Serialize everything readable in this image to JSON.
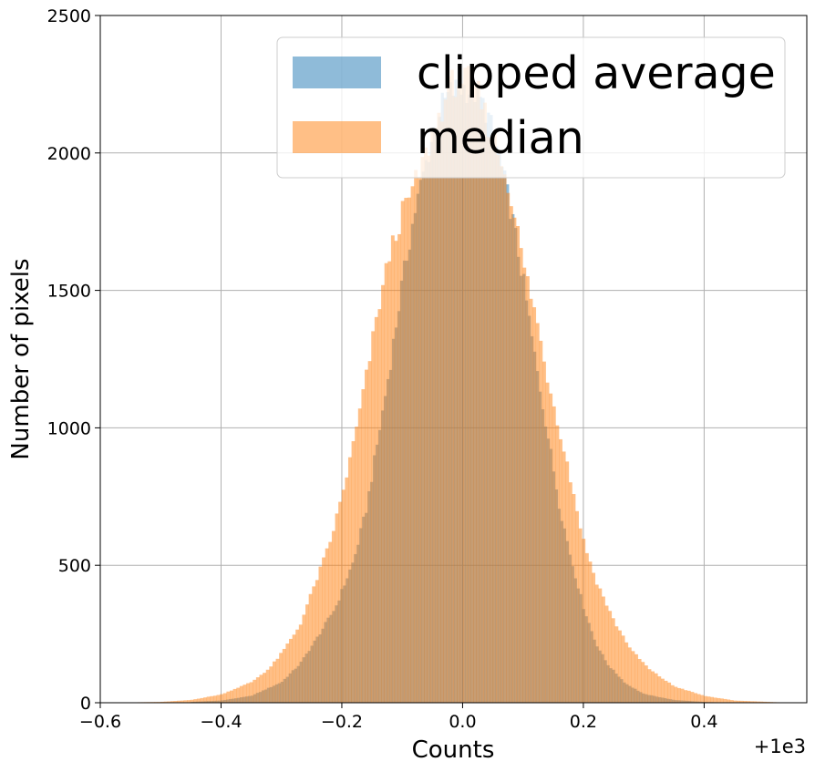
{
  "chart_data": {
    "type": "bar",
    "subtype": "overlapping-histogram",
    "xlabel": "Counts",
    "ylabel": "Number of pixels",
    "x_offset_label": "+1e3",
    "xlim": [
      -0.6,
      0.57
    ],
    "ylim": [
      0,
      2500
    ],
    "xticks": [
      "−0.6",
      "−0.4",
      "−0.2",
      "0.0",
      "0.2",
      "0.4"
    ],
    "xtick_values": [
      -0.6,
      -0.4,
      -0.2,
      0.0,
      0.2,
      0.4
    ],
    "yticks": [
      "0",
      "500",
      "1000",
      "1500",
      "2000",
      "2500"
    ],
    "ytick_values": [
      0,
      500,
      1000,
      1500,
      2000,
      2500
    ],
    "grid": true,
    "legend_position": "upper right",
    "series": [
      {
        "name": "clipped average",
        "color": "#1f77b4",
        "alpha": 0.5,
        "range": [
          -0.45,
          0.45
        ],
        "points": [
          [
            -0.45,
            3
          ],
          [
            -0.4,
            8
          ],
          [
            -0.35,
            25
          ],
          [
            -0.3,
            75
          ],
          [
            -0.27,
            140
          ],
          [
            -0.24,
            240
          ],
          [
            -0.21,
            350
          ],
          [
            -0.18,
            520
          ],
          [
            -0.16,
            700
          ],
          [
            -0.14,
            960
          ],
          [
            -0.12,
            1230
          ],
          [
            -0.1,
            1530
          ],
          [
            -0.08,
            1780
          ],
          [
            -0.06,
            1970
          ],
          [
            -0.04,
            2150
          ],
          [
            -0.02,
            2220
          ],
          [
            0.0,
            2240
          ],
          [
            0.02,
            2220
          ],
          [
            0.04,
            2150
          ],
          [
            0.06,
            1990
          ],
          [
            0.08,
            1790
          ],
          [
            0.1,
            1540
          ],
          [
            0.12,
            1250
          ],
          [
            0.14,
            990
          ],
          [
            0.16,
            720
          ],
          [
            0.18,
            520
          ],
          [
            0.2,
            350
          ],
          [
            0.22,
            220
          ],
          [
            0.24,
            140
          ],
          [
            0.27,
            70
          ],
          [
            0.3,
            32
          ],
          [
            0.35,
            10
          ],
          [
            0.4,
            3
          ],
          [
            0.45,
            0
          ]
        ]
      },
      {
        "name": "median",
        "color": "#ff7f0e",
        "alpha": 0.5,
        "range": [
          -0.56,
          0.53
        ],
        "points": [
          [
            -0.56,
            1
          ],
          [
            -0.5,
            3
          ],
          [
            -0.45,
            10
          ],
          [
            -0.4,
            30
          ],
          [
            -0.35,
            75
          ],
          [
            -0.32,
            125
          ],
          [
            -0.3,
            180
          ],
          [
            -0.27,
            280
          ],
          [
            -0.25,
            400
          ],
          [
            -0.22,
            580
          ],
          [
            -0.2,
            750
          ],
          [
            -0.18,
            950
          ],
          [
            -0.16,
            1180
          ],
          [
            -0.14,
            1430
          ],
          [
            -0.12,
            1640
          ],
          [
            -0.1,
            1780
          ],
          [
            -0.08,
            1880
          ],
          [
            -0.06,
            2000
          ],
          [
            -0.04,
            2130
          ],
          [
            -0.02,
            2250
          ],
          [
            0.0,
            2270
          ],
          [
            0.02,
            2250
          ],
          [
            0.04,
            2120
          ],
          [
            0.06,
            2000
          ],
          [
            0.08,
            1850
          ],
          [
            0.1,
            1600
          ],
          [
            0.12,
            1420
          ],
          [
            0.14,
            1190
          ],
          [
            0.16,
            1000
          ],
          [
            0.18,
            800
          ],
          [
            0.2,
            590
          ],
          [
            0.22,
            450
          ],
          [
            0.25,
            300
          ],
          [
            0.28,
            190
          ],
          [
            0.31,
            120
          ],
          [
            0.35,
            60
          ],
          [
            0.4,
            25
          ],
          [
            0.45,
            8
          ],
          [
            0.53,
            1
          ]
        ]
      }
    ]
  }
}
